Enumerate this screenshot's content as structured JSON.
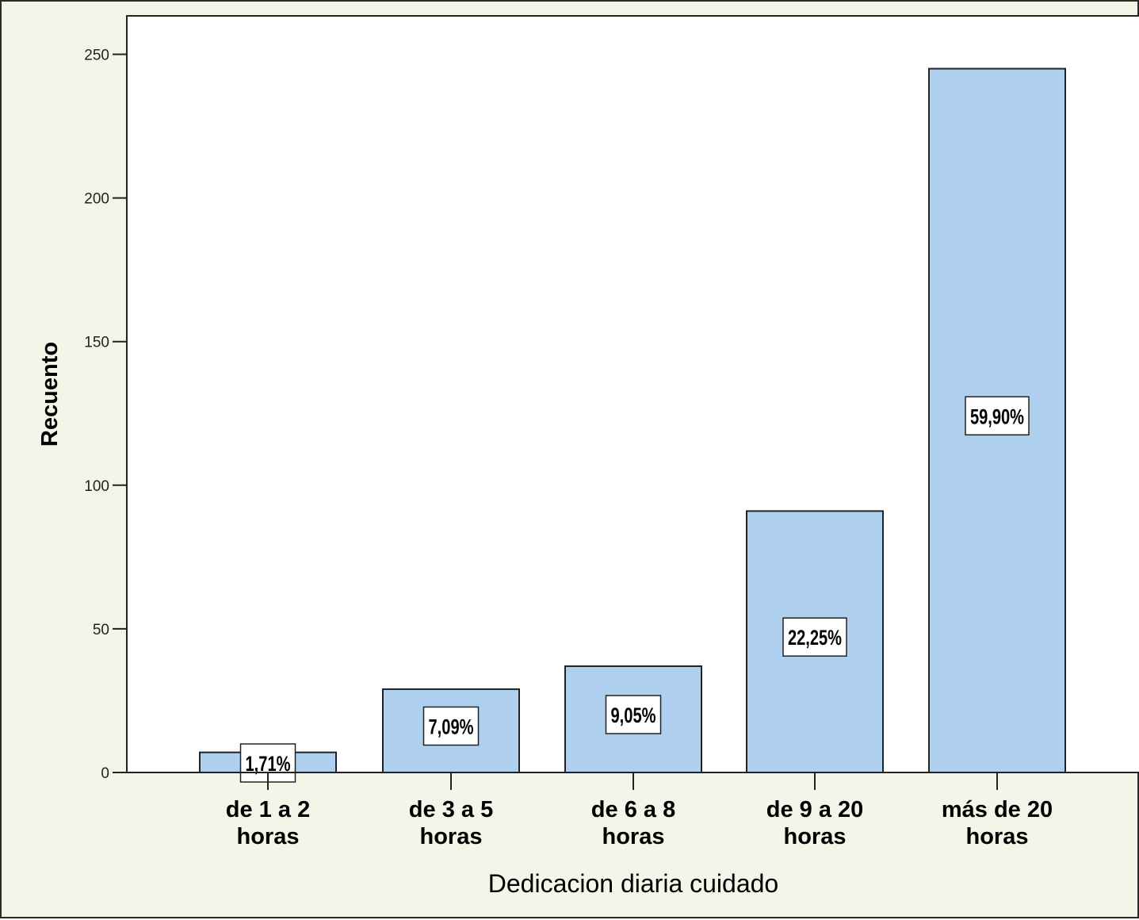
{
  "chart_data": {
    "type": "bar",
    "title": "",
    "xlabel": "Dedicacion diaria cuidado",
    "ylabel": "Recuento",
    "categories": [
      [
        "de 1 a 2",
        "horas"
      ],
      [
        "de 3 a 5",
        "horas"
      ],
      [
        "de 6 a 8",
        "horas"
      ],
      [
        "de 9 a 20",
        "horas"
      ],
      [
        "más de 20",
        "horas"
      ]
    ],
    "values": [
      7,
      29,
      37,
      91,
      245
    ],
    "data_labels": [
      "1,71%",
      "7,09%",
      "9,05%",
      "22,25%",
      "59,90%"
    ],
    "ylim": [
      0,
      265
    ],
    "yticks": [
      0,
      50,
      100,
      150,
      200,
      250
    ],
    "grid": false,
    "legend": "none",
    "colors": {
      "bar_fill": "#aecfee",
      "bar_stroke": "#222222",
      "plot_background": "#ffffff",
      "frame_background": "#f3f5e8",
      "label_box_fill": "#ffffff"
    }
  }
}
